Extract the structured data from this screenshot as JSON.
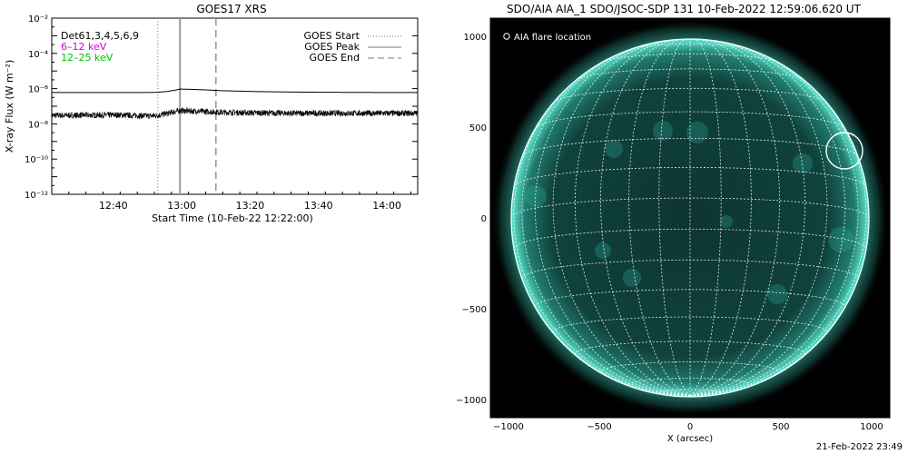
{
  "chart_data": [
    {
      "type": "line",
      "title": "GOES17 XRS",
      "xlabel": "Start Time (10-Feb-22 12:22:00)",
      "ylabel": "X-ray Flux (W m⁻²)",
      "y_scale": "log",
      "ylim": [
        1e-12,
        0.01
      ],
      "xlim_minutes": [
        0,
        107
      ],
      "x_ticks": [
        {
          "minute": 18,
          "label": "12:40"
        },
        {
          "minute": 38,
          "label": "13:00"
        },
        {
          "minute": 58,
          "label": "13:20"
        },
        {
          "minute": 78,
          "label": "13:40"
        },
        {
          "minute": 98,
          "label": "14:00"
        }
      ],
      "y_ticks": [
        {
          "exp": -2,
          "label": "10⁻²"
        },
        {
          "exp": -4,
          "label": "10⁻⁴"
        },
        {
          "exp": -6,
          "label": "10⁻⁶"
        },
        {
          "exp": -8,
          "label": "10⁻⁸"
        },
        {
          "exp": -10,
          "label": "10⁻¹⁰"
        },
        {
          "exp": -12,
          "label": "10⁻¹²"
        }
      ],
      "channel_labels": [
        {
          "text": "Det61,3,4,5,6,9",
          "color": "#000000"
        },
        {
          "text": "6–12 keV",
          "color": "#d400d4"
        },
        {
          "text": "12–25 keV",
          "color": "#00c400"
        }
      ],
      "legend": [
        {
          "label": "GOES Start",
          "style": "dotted"
        },
        {
          "label": "GOES Peak",
          "style": "solid"
        },
        {
          "label": "GOES End",
          "style": "dashed"
        }
      ],
      "events_minutes": {
        "start": 31,
        "peak": 37.5,
        "end": 48
      },
      "series": [
        {
          "channel": "long",
          "x": [
            0,
            20,
            28,
            31,
            34,
            36.5,
            37.5,
            40,
            45,
            50,
            60,
            70,
            80,
            90,
            100,
            107
          ],
          "y": [
            6e-07,
            6e-07,
            6e-07,
            6.2e-07,
            7e-07,
            8.5e-07,
            9.4e-07,
            9.2e-07,
            8.5e-07,
            7.6e-07,
            6.8e-07,
            6.4e-07,
            6.2e-07,
            6.1e-07,
            6e-07,
            6e-07
          ]
        },
        {
          "channel": "short",
          "x": [
            0,
            20,
            28,
            31,
            34,
            36.5,
            37.5,
            40,
            45,
            50,
            60,
            70,
            80,
            90,
            100,
            107
          ],
          "y": [
            3e-08,
            3.2e-08,
            2.8e-08,
            3e-08,
            4e-08,
            5.2e-08,
            5.6e-08,
            5.4e-08,
            5e-08,
            4.5e-08,
            4.2e-08,
            4e-08,
            4e-08,
            4e-08,
            4e-08,
            4e-08
          ]
        }
      ]
    },
    {
      "type": "image",
      "title": "SDO/AIA AIA_1 SDO/JSOC-SDP 131 10-Feb-2022 12:59:06.620 UT",
      "xlabel": "X (arcsec)",
      "ylabel": "",
      "xlim": [
        -1100,
        1100
      ],
      "ylim": [
        -1100,
        1100
      ],
      "x_ticks": [
        -1000,
        -500,
        0,
        500,
        1000
      ],
      "y_ticks": [
        -1000,
        -500,
        0,
        500,
        1000
      ],
      "tick_labels": [
        "−1000",
        "−500",
        "0",
        "500",
        "1000"
      ],
      "legend_label": "AIA flare location",
      "solar_radius_arcsec": 985,
      "grid_spacing_deg": 10,
      "flare_location": {
        "x": 850,
        "y": 370,
        "radius": 100
      },
      "disk_color": "#0b2c2a",
      "limb_color": "#4fe0c8"
    }
  ],
  "footer": "21-Feb-2022 23:49"
}
